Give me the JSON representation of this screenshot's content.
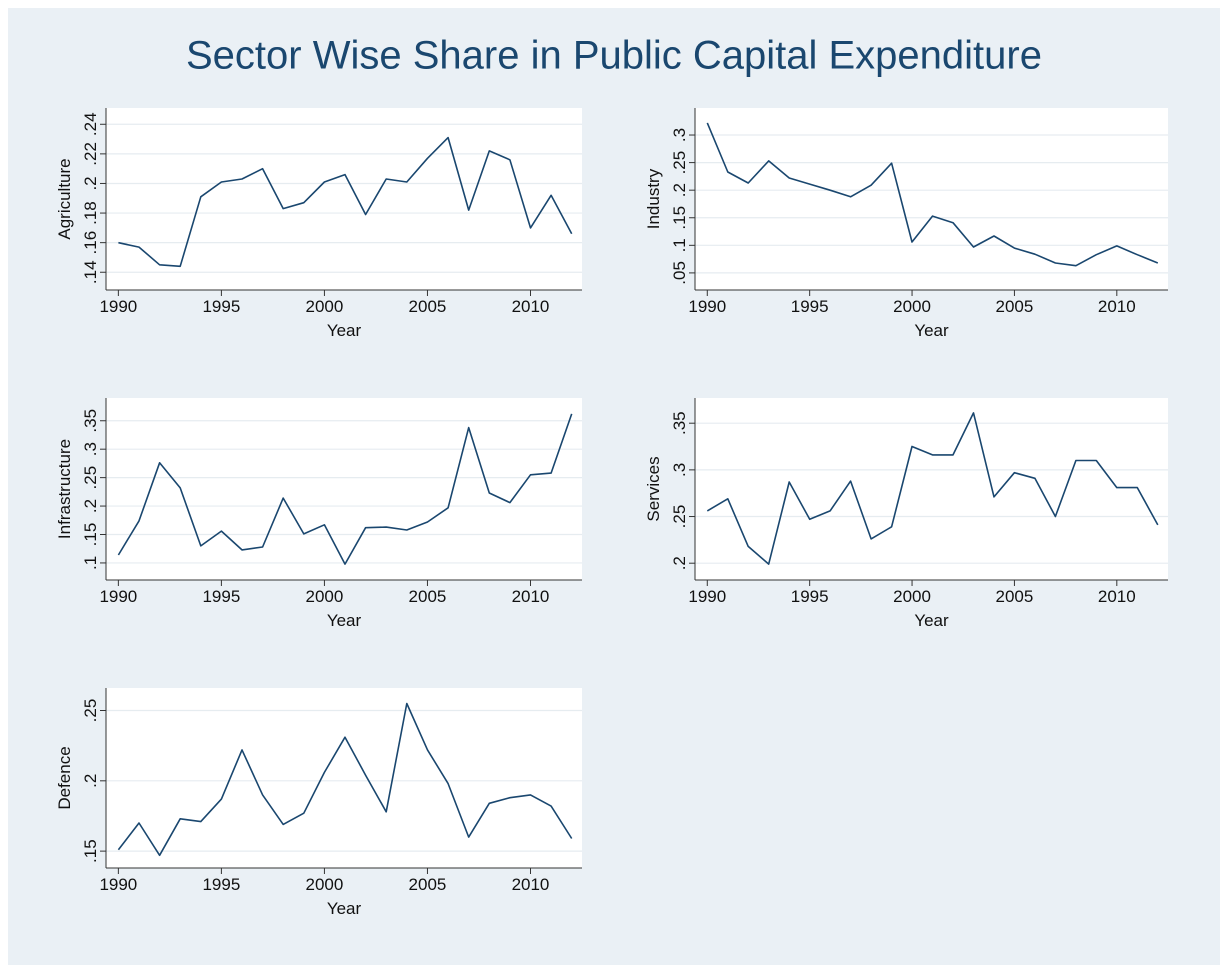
{
  "title": "Sector Wise Share in Public Capital Expenditure",
  "chart_data": [
    {
      "type": "line",
      "ylabel": "Agriculture",
      "xlabel": "Year",
      "color": "#1a476f",
      "grid": true,
      "x": [
        1990,
        1991,
        1992,
        1993,
        1994,
        1995,
        1996,
        1997,
        1998,
        1999,
        2000,
        2001,
        2002,
        2003,
        2004,
        2005,
        2006,
        2007,
        2008,
        2009,
        2010,
        2011,
        2012
      ],
      "values": [
        0.16,
        0.157,
        0.145,
        0.144,
        0.191,
        0.201,
        0.203,
        0.21,
        0.183,
        0.187,
        0.201,
        0.206,
        0.179,
        0.203,
        0.201,
        0.217,
        0.231,
        0.182,
        0.222,
        0.216,
        0.17,
        0.192,
        0.166
      ],
      "xlim": [
        1989.4,
        2012.5
      ],
      "xticks": [
        1990,
        1995,
        2000,
        2005,
        2010
      ],
      "ylim": [
        0.128,
        0.251
      ],
      "yticks": [
        {
          "value": 0.14,
          "label": ".14"
        },
        {
          "value": 0.16,
          "label": ".16"
        },
        {
          "value": 0.18,
          "label": ".18"
        },
        {
          "value": 0.2,
          "label": ".2"
        },
        {
          "value": 0.22,
          "label": ".22"
        },
        {
          "value": 0.24,
          "label": ".24"
        }
      ]
    },
    {
      "type": "line",
      "ylabel": "Industry",
      "xlabel": "Year",
      "color": "#1a476f",
      "grid": true,
      "x": [
        1990,
        1991,
        1992,
        1993,
        1994,
        1995,
        1996,
        1997,
        1998,
        1999,
        2000,
        2001,
        2002,
        2003,
        2004,
        2005,
        2006,
        2007,
        2008,
        2009,
        2010,
        2011,
        2012
      ],
      "values": [
        0.322,
        0.233,
        0.213,
        0.253,
        0.222,
        0.211,
        0.2,
        0.188,
        0.209,
        0.249,
        0.106,
        0.153,
        0.141,
        0.097,
        0.117,
        0.095,
        0.084,
        0.068,
        0.063,
        0.083,
        0.099,
        0.083,
        0.068
      ],
      "xlim": [
        1989.4,
        2012.5
      ],
      "xticks": [
        1990,
        1995,
        2000,
        2005,
        2010
      ],
      "ylim": [
        0.019,
        0.349
      ],
      "yticks": [
        {
          "value": 0.05,
          "label": ".05"
        },
        {
          "value": 0.1,
          "label": ".1"
        },
        {
          "value": 0.15,
          "label": ".15"
        },
        {
          "value": 0.2,
          "label": ".2"
        },
        {
          "value": 0.25,
          "label": ".25"
        },
        {
          "value": 0.3,
          "label": ".3"
        }
      ]
    },
    {
      "type": "line",
      "ylabel": "Infrastructure",
      "xlabel": "Year",
      "color": "#1a476f",
      "grid": true,
      "x": [
        1990,
        1991,
        1992,
        1993,
        1994,
        1995,
        1996,
        1997,
        1998,
        1999,
        2000,
        2001,
        2002,
        2003,
        2004,
        2005,
        2006,
        2007,
        2008,
        2009,
        2010,
        2011,
        2012
      ],
      "values": [
        0.114,
        0.174,
        0.276,
        0.232,
        0.13,
        0.156,
        0.123,
        0.128,
        0.214,
        0.151,
        0.167,
        0.098,
        0.162,
        0.163,
        0.158,
        0.172,
        0.197,
        0.338,
        0.223,
        0.206,
        0.255,
        0.258,
        0.362
      ],
      "xlim": [
        1989.4,
        2012.5
      ],
      "xticks": [
        1990,
        1995,
        2000,
        2005,
        2010
      ],
      "ylim": [
        0.07,
        0.39
      ],
      "yticks": [
        {
          "value": 0.1,
          "label": ".1"
        },
        {
          "value": 0.15,
          "label": ".15"
        },
        {
          "value": 0.2,
          "label": ".2"
        },
        {
          "value": 0.25,
          "label": ".25"
        },
        {
          "value": 0.3,
          "label": ".3"
        },
        {
          "value": 0.35,
          "label": ".35"
        }
      ]
    },
    {
      "type": "line",
      "ylabel": "Services",
      "xlabel": "Year",
      "color": "#1a476f",
      "grid": true,
      "x": [
        1990,
        1991,
        1992,
        1993,
        1994,
        1995,
        1996,
        1997,
        1998,
        1999,
        2000,
        2001,
        2002,
        2003,
        2004,
        2005,
        2006,
        2007,
        2008,
        2009,
        2010,
        2011,
        2012
      ],
      "values": [
        0.256,
        0.269,
        0.218,
        0.199,
        0.287,
        0.247,
        0.256,
        0.288,
        0.226,
        0.239,
        0.325,
        0.316,
        0.316,
        0.361,
        0.271,
        0.297,
        0.291,
        0.25,
        0.31,
        0.31,
        0.281,
        0.281,
        0.241
      ],
      "xlim": [
        1989.4,
        2012.5
      ],
      "xticks": [
        1990,
        1995,
        2000,
        2005,
        2010
      ],
      "ylim": [
        0.182,
        0.377
      ],
      "yticks": [
        {
          "value": 0.2,
          "label": ".2"
        },
        {
          "value": 0.25,
          "label": ".25"
        },
        {
          "value": 0.3,
          "label": ".3"
        },
        {
          "value": 0.35,
          "label": ".35"
        }
      ]
    },
    {
      "type": "line",
      "ylabel": "Defence",
      "xlabel": "Year",
      "color": "#1a476f",
      "grid": true,
      "x": [
        1990,
        1991,
        1992,
        1993,
        1994,
        1995,
        1996,
        1997,
        1998,
        1999,
        2000,
        2001,
        2002,
        2003,
        2004,
        2005,
        2006,
        2007,
        2008,
        2009,
        2010,
        2011,
        2012
      ],
      "values": [
        0.151,
        0.17,
        0.147,
        0.173,
        0.171,
        0.187,
        0.222,
        0.19,
        0.169,
        0.177,
        0.206,
        0.231,
        0.204,
        0.178,
        0.255,
        0.222,
        0.198,
        0.16,
        0.184,
        0.188,
        0.19,
        0.182,
        0.159
      ],
      "xlim": [
        1989.4,
        2012.5
      ],
      "xticks": [
        1990,
        1995,
        2000,
        2005,
        2010
      ],
      "ylim": [
        0.138,
        0.266
      ],
      "yticks": [
        {
          "value": 0.15,
          "label": ".15"
        },
        {
          "value": 0.2,
          "label": ".2"
        },
        {
          "value": 0.25,
          "label": ".25"
        }
      ]
    }
  ]
}
